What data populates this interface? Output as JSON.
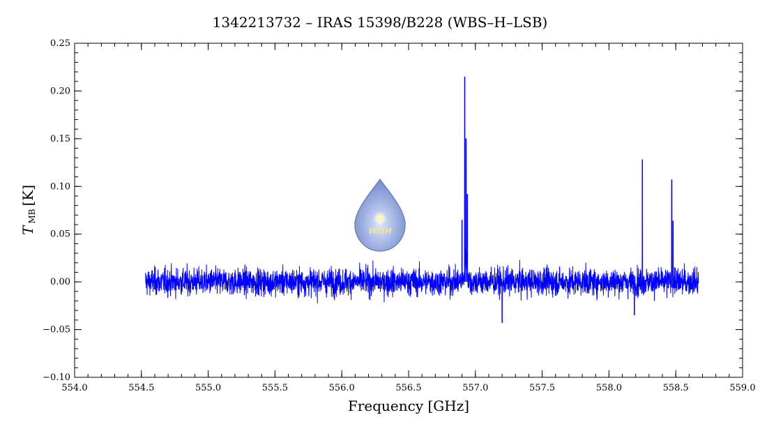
{
  "chart_data": {
    "type": "line",
    "title": "1342213732 – IRAS 15398/B228 (WBS–H–LSB)",
    "xlabel": "Frequency [GHz]",
    "ylabel_main": "T",
    "ylabel_sub": "MB",
    "ylabel_unit": "[K]",
    "xlim": [
      554.0,
      559.0
    ],
    "ylim": [
      -0.1,
      0.25
    ],
    "x_ticks": [
      "554.0",
      "554.5",
      "555.0",
      "555.5",
      "556.0",
      "556.5",
      "557.0",
      "557.5",
      "558.0",
      "558.5",
      "559.0"
    ],
    "y_ticks": [
      "−0.10",
      "−0.05",
      "0.00",
      "0.05",
      "0.10",
      "0.15",
      "0.20",
      "0.25"
    ],
    "grid": false,
    "series": [
      {
        "color": "#0000ff",
        "x_range": [
          554.53,
          558.67
        ],
        "noise_rms": 0.012,
        "features": [
          {
            "x": 556.92,
            "y": 0.215
          },
          {
            "x": 556.93,
            "y": 0.15
          },
          {
            "x": 556.94,
            "y": 0.092
          },
          {
            "x": 556.9,
            "y": 0.065
          },
          {
            "x": 558.25,
            "y": 0.128
          },
          {
            "x": 558.47,
            "y": 0.107
          },
          {
            "x": 558.48,
            "y": 0.064
          },
          {
            "x": 557.2,
            "y": -0.043
          },
          {
            "x": 558.19,
            "y": -0.035
          }
        ]
      }
    ],
    "logo": {
      "text": "WISH",
      "icon": "water-drop-star-logo"
    }
  }
}
